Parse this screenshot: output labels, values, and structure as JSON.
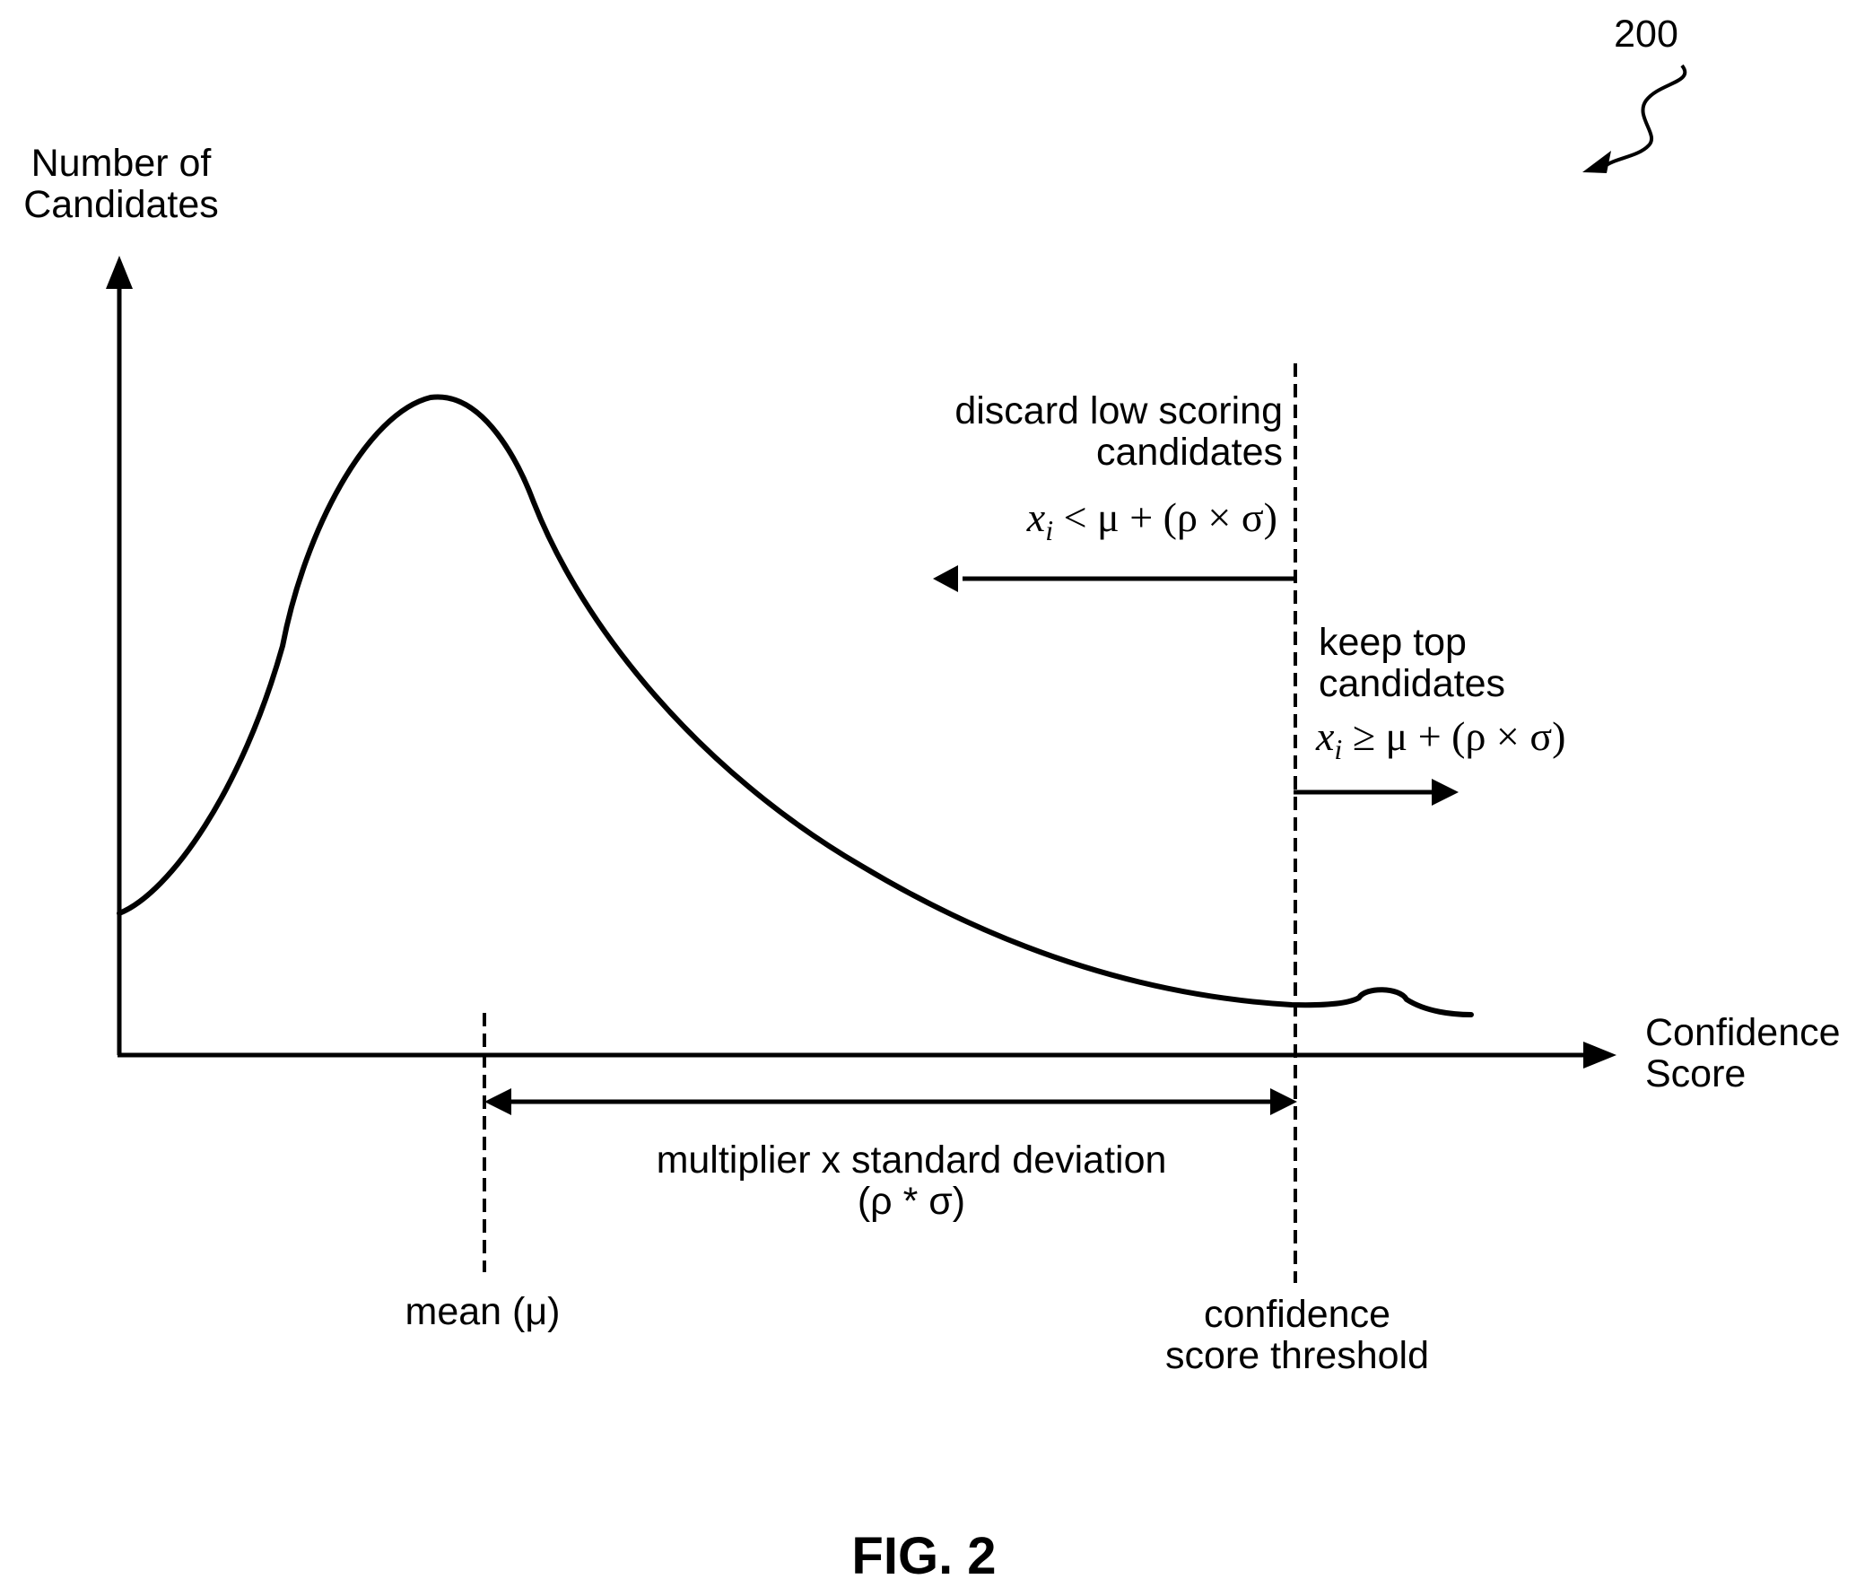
{
  "reference_number": "200",
  "axes": {
    "y_label_line1": "Number of",
    "y_label_line2": "Candidates",
    "x_label_line1": "Confidence",
    "x_label_line2": "Score"
  },
  "discard_region": {
    "label_line1": "discard low scoring",
    "label_line2": "candidates",
    "formula_var": "x",
    "formula_sub": "i",
    "formula_rest": " < μ + (ρ × σ)"
  },
  "keep_region": {
    "label_line1": "keep top",
    "label_line2": "candidates",
    "formula_var": "x",
    "formula_sub": "i",
    "formula_rest": " ≥ μ + (ρ × σ)"
  },
  "span_label": {
    "line1": "multiplier x standard deviation",
    "line2": "(ρ * σ)"
  },
  "mean_label": "mean (μ)",
  "threshold_label": {
    "line1": "confidence",
    "line2": "score threshold"
  },
  "figure_caption": "FIG. 2",
  "colors": {
    "ink": "#000000",
    "background": "#ffffff"
  }
}
